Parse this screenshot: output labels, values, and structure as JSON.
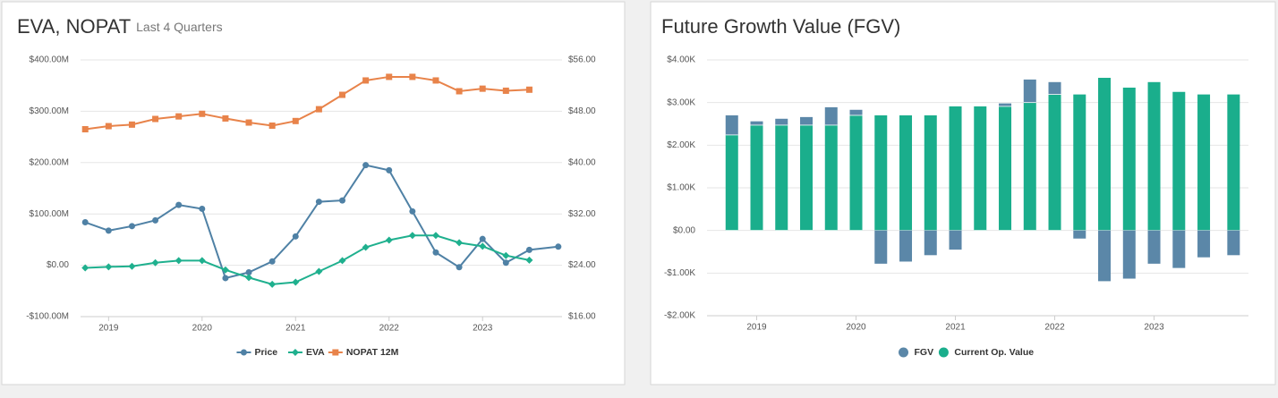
{
  "chart_data": [
    {
      "type": "line",
      "title": "EVA, NOPAT",
      "subtitle": "Last 4 Quarters",
      "x": [
        2018.75,
        2019,
        2019.25,
        2019.5,
        2019.75,
        2020,
        2020.25,
        2020.5,
        2020.75,
        2021,
        2021.25,
        2021.5,
        2021.75,
        2022,
        2022.25,
        2022.5,
        2022.75,
        2023,
        2023.25,
        2023.5,
        2023.81
      ],
      "series": [
        {
          "name": "Price",
          "color": "#4f81a5",
          "axis": "y2",
          "values": [
            30.7,
            29.4,
            30.1,
            31.0,
            33.4,
            32.8,
            22.0,
            22.9,
            24.6,
            28.5,
            33.9,
            34.1,
            39.6,
            38.8,
            32.4,
            26.0,
            23.7,
            28.1,
            24.4,
            26.4,
            26.9
          ]
        },
        {
          "name": "EVA",
          "color": "#1fb08e",
          "values": [
            -5,
            -3,
            -2,
            5,
            9,
            9,
            -9,
            -24,
            -37,
            -33,
            -12,
            9,
            35,
            49,
            58,
            58,
            44,
            37,
            19,
            10,
            null
          ]
        },
        {
          "name": "NOPAT 12M",
          "color": "#e8834a",
          "values": [
            265,
            271,
            274,
            285,
            290,
            295,
            286,
            278,
            272,
            281,
            304,
            332,
            360,
            367,
            367,
            360,
            339,
            344,
            340,
            342,
            null
          ]
        }
      ],
      "xlim": [
        2018.7,
        2023.85
      ],
      "xticks": [
        2019,
        2020,
        2021,
        2022,
        2023
      ],
      "ylim": [
        -100,
        400
      ],
      "yticks": [
        {
          "value": -100,
          "label": "-$100.00M"
        },
        {
          "value": 0,
          "label": "$0.00"
        },
        {
          "value": 100,
          "label": "$100.00M"
        },
        {
          "value": 200,
          "label": "$200.00M"
        },
        {
          "value": 300,
          "label": "$300.00M"
        },
        {
          "value": 400,
          "label": "$400.00M"
        }
      ],
      "y2lim": [
        16,
        56
      ],
      "y2ticks": [
        {
          "value": 16,
          "label": "$16.00"
        },
        {
          "value": 24,
          "label": "$24.00"
        },
        {
          "value": 32,
          "label": "$32.00"
        },
        {
          "value": 40,
          "label": "$40.00"
        },
        {
          "value": 48,
          "label": "$48.00"
        },
        {
          "value": 56,
          "label": "$56.00"
        }
      ],
      "grid": true,
      "legend": "bottom"
    },
    {
      "type": "bar",
      "stacked": true,
      "title": "Future Growth Value (FGV)",
      "x": [
        2018.75,
        2019,
        2019.25,
        2019.5,
        2019.75,
        2020,
        2020.25,
        2020.5,
        2020.75,
        2021,
        2021.25,
        2021.5,
        2021.75,
        2022,
        2022.25,
        2022.5,
        2022.75,
        2023,
        2023.25,
        2023.5,
        2023.8
      ],
      "series": [
        {
          "name": "FGV",
          "color": "#5b87a8",
          "values": [
            0.46,
            0.09,
            0.15,
            0.19,
            0.42,
            0.13,
            -0.78,
            -0.73,
            -0.58,
            -0.45,
            0,
            0.07,
            0.54,
            0.29,
            -0.19,
            -1.19,
            -1.13,
            -0.78,
            -0.88,
            -0.63,
            -0.58
          ]
        },
        {
          "name": "Current Op. Value",
          "color": "#1aae8c",
          "values": [
            2.24,
            2.47,
            2.47,
            2.47,
            2.47,
            2.7,
            2.7,
            2.7,
            2.7,
            2.91,
            2.91,
            2.91,
            3.0,
            3.19,
            3.19,
            3.58,
            3.35,
            3.48,
            3.25,
            3.19,
            3.19
          ]
        }
      ],
      "xlim": [
        2018.5,
        2023.95
      ],
      "xticks": [
        2019,
        2020,
        2021,
        2022,
        2023
      ],
      "ylim": [
        -2,
        4
      ],
      "yticks": [
        {
          "value": -2,
          "label": "-$2.00K"
        },
        {
          "value": -1,
          "label": "-$1.00K"
        },
        {
          "value": 0,
          "label": "$0.00"
        },
        {
          "value": 1,
          "label": "$1.00K"
        },
        {
          "value": 2,
          "label": "$2.00K"
        },
        {
          "value": 3,
          "label": "$3.00K"
        },
        {
          "value": 4,
          "label": "$4.00K"
        }
      ],
      "grid": true,
      "legend": "bottom"
    }
  ]
}
